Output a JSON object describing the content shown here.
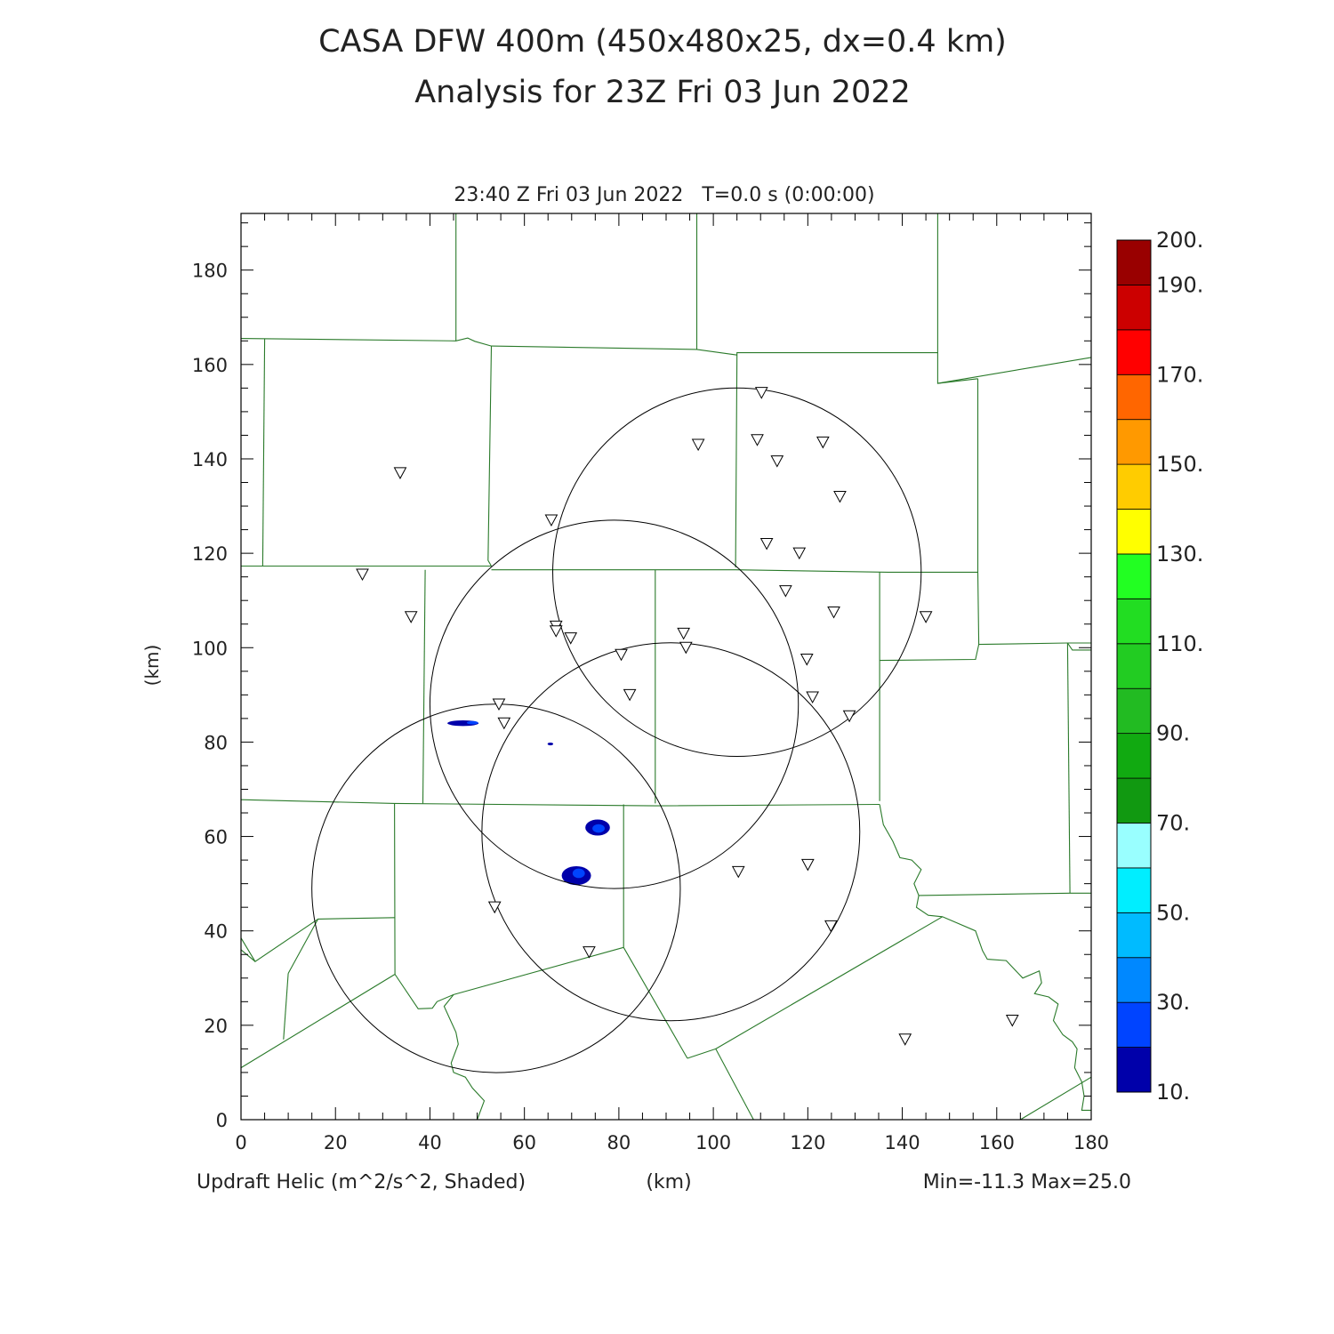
{
  "header": {
    "title_line1": "CASA DFW 400m (450x480x25, dx=0.4 km)",
    "title_line2": "Analysis for 23Z Fri 03 Jun 2022"
  },
  "plot": {
    "subtitle": "23:40 Z Fri 03 Jun 2022   T=0.0 s (0:00:00)",
    "xlabel": "(km)",
    "ylabel": "(km)",
    "field_label": "Updraft Helic (m^2/s^2, Shaded)",
    "minmax": "Min=-11.3 Max=25.0",
    "xlim": [
      0,
      180
    ],
    "ylim": [
      0,
      192
    ],
    "x_ticks": [
      0,
      20,
      40,
      60,
      80,
      100,
      120,
      140,
      160,
      180
    ],
    "y_ticks": [
      0,
      20,
      40,
      60,
      80,
      100,
      120,
      140,
      160,
      180
    ]
  },
  "colorbar": {
    "labels": [
      "10.",
      "30.",
      "50.",
      "70.",
      "90.",
      "110.",
      "130.",
      "150.",
      "170.",
      "190.",
      "200."
    ],
    "colors": [
      "#0000aa",
      "#0044ff",
      "#0088ff",
      "#00bbff",
      "#00eeff",
      "#99ffff",
      "#119911",
      "#11aa11",
      "#22bb22",
      "#22cc22",
      "#22dd22",
      "#22ff22",
      "#ffff00",
      "#ffcc00",
      "#ff9900",
      "#ff6600",
      "#ff0000",
      "#cc0000",
      "#990000"
    ],
    "label_values": [
      10,
      30,
      50,
      70,
      90,
      110,
      130,
      150,
      170,
      190,
      200
    ]
  },
  "map": {
    "border_color": "#2a7a2a",
    "ring_color": "#000000",
    "radar_rings": [
      {
        "cx": 105,
        "cy": 116,
        "r": 39
      },
      {
        "cx": 79,
        "cy": 88,
        "r": 39
      },
      {
        "cx": 91,
        "cy": 61,
        "r": 40
      },
      {
        "cx": 54,
        "cy": 49,
        "r": 39
      }
    ],
    "stations": [
      [
        33.7,
        137
      ],
      [
        25.7,
        115.5
      ],
      [
        36,
        106.5
      ],
      [
        65.7,
        127
      ],
      [
        66.7,
        104.5
      ],
      [
        66.7,
        103.5
      ],
      [
        69.8,
        102
      ],
      [
        80.5,
        98.5
      ],
      [
        82.3,
        90
      ],
      [
        93.7,
        103
      ],
      [
        94.2,
        100
      ],
      [
        96.8,
        143
      ],
      [
        110.2,
        154
      ],
      [
        109.3,
        144
      ],
      [
        113.5,
        139.5
      ],
      [
        123.2,
        143.5
      ],
      [
        126.8,
        132
      ],
      [
        111.3,
        122
      ],
      [
        118.2,
        120
      ],
      [
        115.3,
        112
      ],
      [
        125.5,
        107.5
      ],
      [
        145,
        106.5
      ],
      [
        119.8,
        97.5
      ],
      [
        121,
        89.5
      ],
      [
        128.8,
        85.5
      ],
      [
        54.6,
        88
      ],
      [
        55.7,
        84
      ],
      [
        53.7,
        45
      ],
      [
        73.7,
        35.5
      ],
      [
        105.3,
        52.5
      ],
      [
        120,
        54
      ],
      [
        124.9,
        41
      ],
      [
        140.6,
        17
      ],
      [
        163.3,
        21
      ]
    ],
    "cells": [
      {
        "cx": 47,
        "cy": 84,
        "rx": 3.3,
        "ry": 0.6,
        "level": 0
      },
      {
        "cx": 49,
        "cy": 84.1,
        "rx": 1.2,
        "ry": 0.35,
        "level": 1
      },
      {
        "cx": 65.5,
        "cy": 79.6,
        "rx": 0.6,
        "ry": 0.3,
        "level": 0
      },
      {
        "cx": 75.5,
        "cy": 61.9,
        "rx": 2.6,
        "ry": 1.7,
        "level": 0
      },
      {
        "cx": 75.7,
        "cy": 61.7,
        "rx": 1.3,
        "ry": 0.9,
        "level": 1
      },
      {
        "cx": 71,
        "cy": 51.7,
        "rx": 3.1,
        "ry": 2.0,
        "level": 0
      },
      {
        "cx": 71.5,
        "cy": 52.2,
        "rx": 1.3,
        "ry": 1.0,
        "level": 1
      }
    ],
    "border_lines": [
      [
        [
          0,
          165.5
        ],
        [
          45.5,
          165
        ],
        [
          48,
          165.6
        ],
        [
          49.5,
          164.9
        ],
        [
          53,
          163.9
        ],
        [
          96.5,
          163.2
        ],
        [
          105,
          162
        ]
      ],
      [
        [
          5,
          165.5
        ],
        [
          4.6,
          117.3
        ]
      ],
      [
        [
          45.5,
          192
        ],
        [
          45.5,
          165
        ]
      ],
      [
        [
          96.5,
          192
        ],
        [
          96.5,
          163.2
        ]
      ],
      [
        [
          147.5,
          192
        ],
        [
          147.5,
          162.5
        ],
        [
          105,
          162.5
        ],
        [
          104.7,
          117
        ]
      ],
      [
        [
          147.5,
          162.5
        ],
        [
          147.5,
          156
        ],
        [
          156,
          157
        ]
      ],
      [
        [
          147.5,
          156
        ],
        [
          180,
          161.5
        ]
      ],
      [
        [
          53,
          163.9
        ],
        [
          52.3,
          118.5
        ],
        [
          53,
          117.3
        ]
      ],
      [
        [
          0,
          117.3
        ],
        [
          53,
          117.3
        ]
      ],
      [
        [
          53,
          116.5
        ],
        [
          104.7,
          116.5
        ],
        [
          137,
          116
        ],
        [
          156,
          116
        ]
      ],
      [
        [
          156,
          157
        ],
        [
          156,
          116
        ],
        [
          156.2,
          100.7
        ],
        [
          155.5,
          97.5
        ],
        [
          135.2,
          97.3
        ]
      ],
      [
        [
          156.2,
          100.7
        ],
        [
          175,
          101
        ],
        [
          180,
          101
        ]
      ],
      [
        [
          39,
          116.5
        ],
        [
          38.5,
          67
        ]
      ],
      [
        [
          87.7,
          116.5
        ],
        [
          87.7,
          67
        ]
      ],
      [
        [
          135.2,
          116
        ],
        [
          135.2,
          67.5
        ]
      ],
      [
        [
          0,
          67.8
        ],
        [
          32.5,
          67
        ],
        [
          87.7,
          66.5
        ],
        [
          135.2,
          66.8
        ]
      ],
      [
        [
          32.5,
          67
        ],
        [
          32.6,
          30.8
        ],
        [
          37.5,
          23.5
        ],
        [
          40.5,
          23.6
        ],
        [
          41.5,
          25
        ],
        [
          45,
          26.5
        ]
      ],
      [
        [
          32.6,
          42.8
        ],
        [
          16.3,
          42.5
        ],
        [
          10,
          31
        ]
      ],
      [
        [
          16.3,
          42.5
        ],
        [
          3,
          33.5
        ],
        [
          0,
          38.5
        ]
      ],
      [
        [
          0,
          11
        ],
        [
          32.6,
          30.8
        ]
      ],
      [
        [
          3,
          33.5
        ],
        [
          0,
          36
        ]
      ],
      [
        [
          10,
          31
        ],
        [
          9,
          17
        ]
      ],
      [
        [
          81,
          66.8
        ],
        [
          81,
          36.5
        ]
      ],
      [
        [
          45,
          26.5
        ],
        [
          81,
          36.5
        ]
      ],
      [
        [
          81,
          36.5
        ],
        [
          94.5,
          13
        ]
      ],
      [
        [
          45,
          26.5
        ],
        [
          43,
          24
        ],
        [
          45.5,
          18.5
        ],
        [
          46,
          16
        ],
        [
          44.5,
          12
        ],
        [
          45,
          10
        ],
        [
          47.5,
          9
        ],
        [
          49,
          6.7
        ],
        [
          51.5,
          4
        ],
        [
          50,
          0
        ]
      ],
      [
        [
          94.5,
          13
        ],
        [
          100.5,
          15
        ],
        [
          108.5,
          0
        ]
      ],
      [
        [
          100.5,
          15
        ],
        [
          148.5,
          43
        ]
      ],
      [
        [
          135.2,
          66.8
        ],
        [
          136,
          62.5
        ],
        [
          138,
          59
        ],
        [
          139.5,
          55.5
        ],
        [
          142,
          55
        ],
        [
          144,
          53
        ],
        [
          142.5,
          50
        ],
        [
          143.5,
          47.5
        ],
        [
          143,
          45
        ],
        [
          145.5,
          43.3
        ],
        [
          148.5,
          43
        ],
        [
          155.5,
          40
        ],
        [
          157,
          35.8
        ],
        [
          158,
          34
        ],
        [
          162,
          33.7
        ],
        [
          165.5,
          30
        ],
        [
          169,
          31.5
        ],
        [
          169.5,
          29
        ],
        [
          168,
          26.7
        ],
        [
          171,
          26
        ],
        [
          173,
          24.5
        ],
        [
          172,
          21
        ],
        [
          174,
          18
        ],
        [
          176,
          16.5
        ],
        [
          177,
          15
        ],
        [
          176.5,
          11
        ],
        [
          178,
          8
        ],
        [
          178.5,
          5
        ],
        [
          178,
          2
        ],
        [
          180,
          2
        ]
      ],
      [
        [
          143.5,
          47.5
        ],
        [
          175.5,
          48
        ],
        [
          180,
          48
        ]
      ],
      [
        [
          175.5,
          48
        ],
        [
          175,
          101
        ]
      ],
      [
        [
          175,
          101
        ],
        [
          176,
          99.5
        ],
        [
          180,
          99.5
        ]
      ],
      [
        [
          165,
          0
        ],
        [
          180,
          9
        ]
      ]
    ]
  }
}
